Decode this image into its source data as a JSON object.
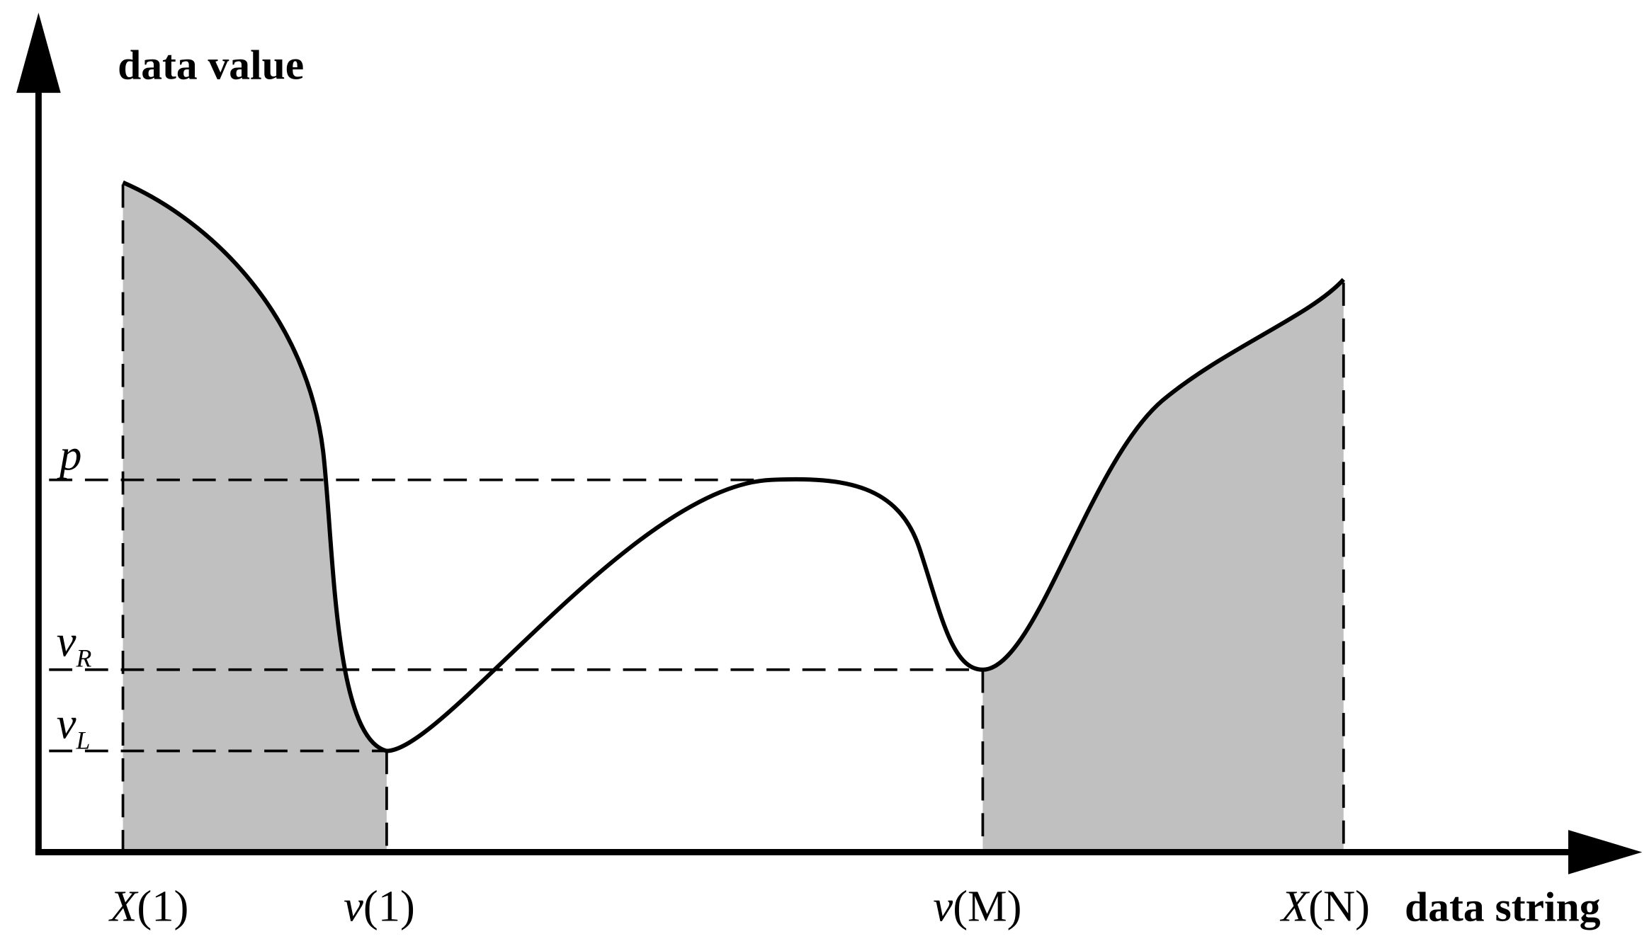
{
  "y_axis_label": "data value",
  "x_axis_label": "data string",
  "x_labels": [
    {
      "name": "X",
      "arg": "(1)"
    },
    {
      "name": "v",
      "arg": "(1)"
    },
    {
      "name": "v",
      "arg": "(M)"
    },
    {
      "name": "X",
      "arg": "(N)"
    }
  ],
  "y_labels": [
    {
      "name": "p"
    },
    {
      "name": "v",
      "sub": "R"
    },
    {
      "name": "v",
      "sub": "L"
    }
  ]
}
